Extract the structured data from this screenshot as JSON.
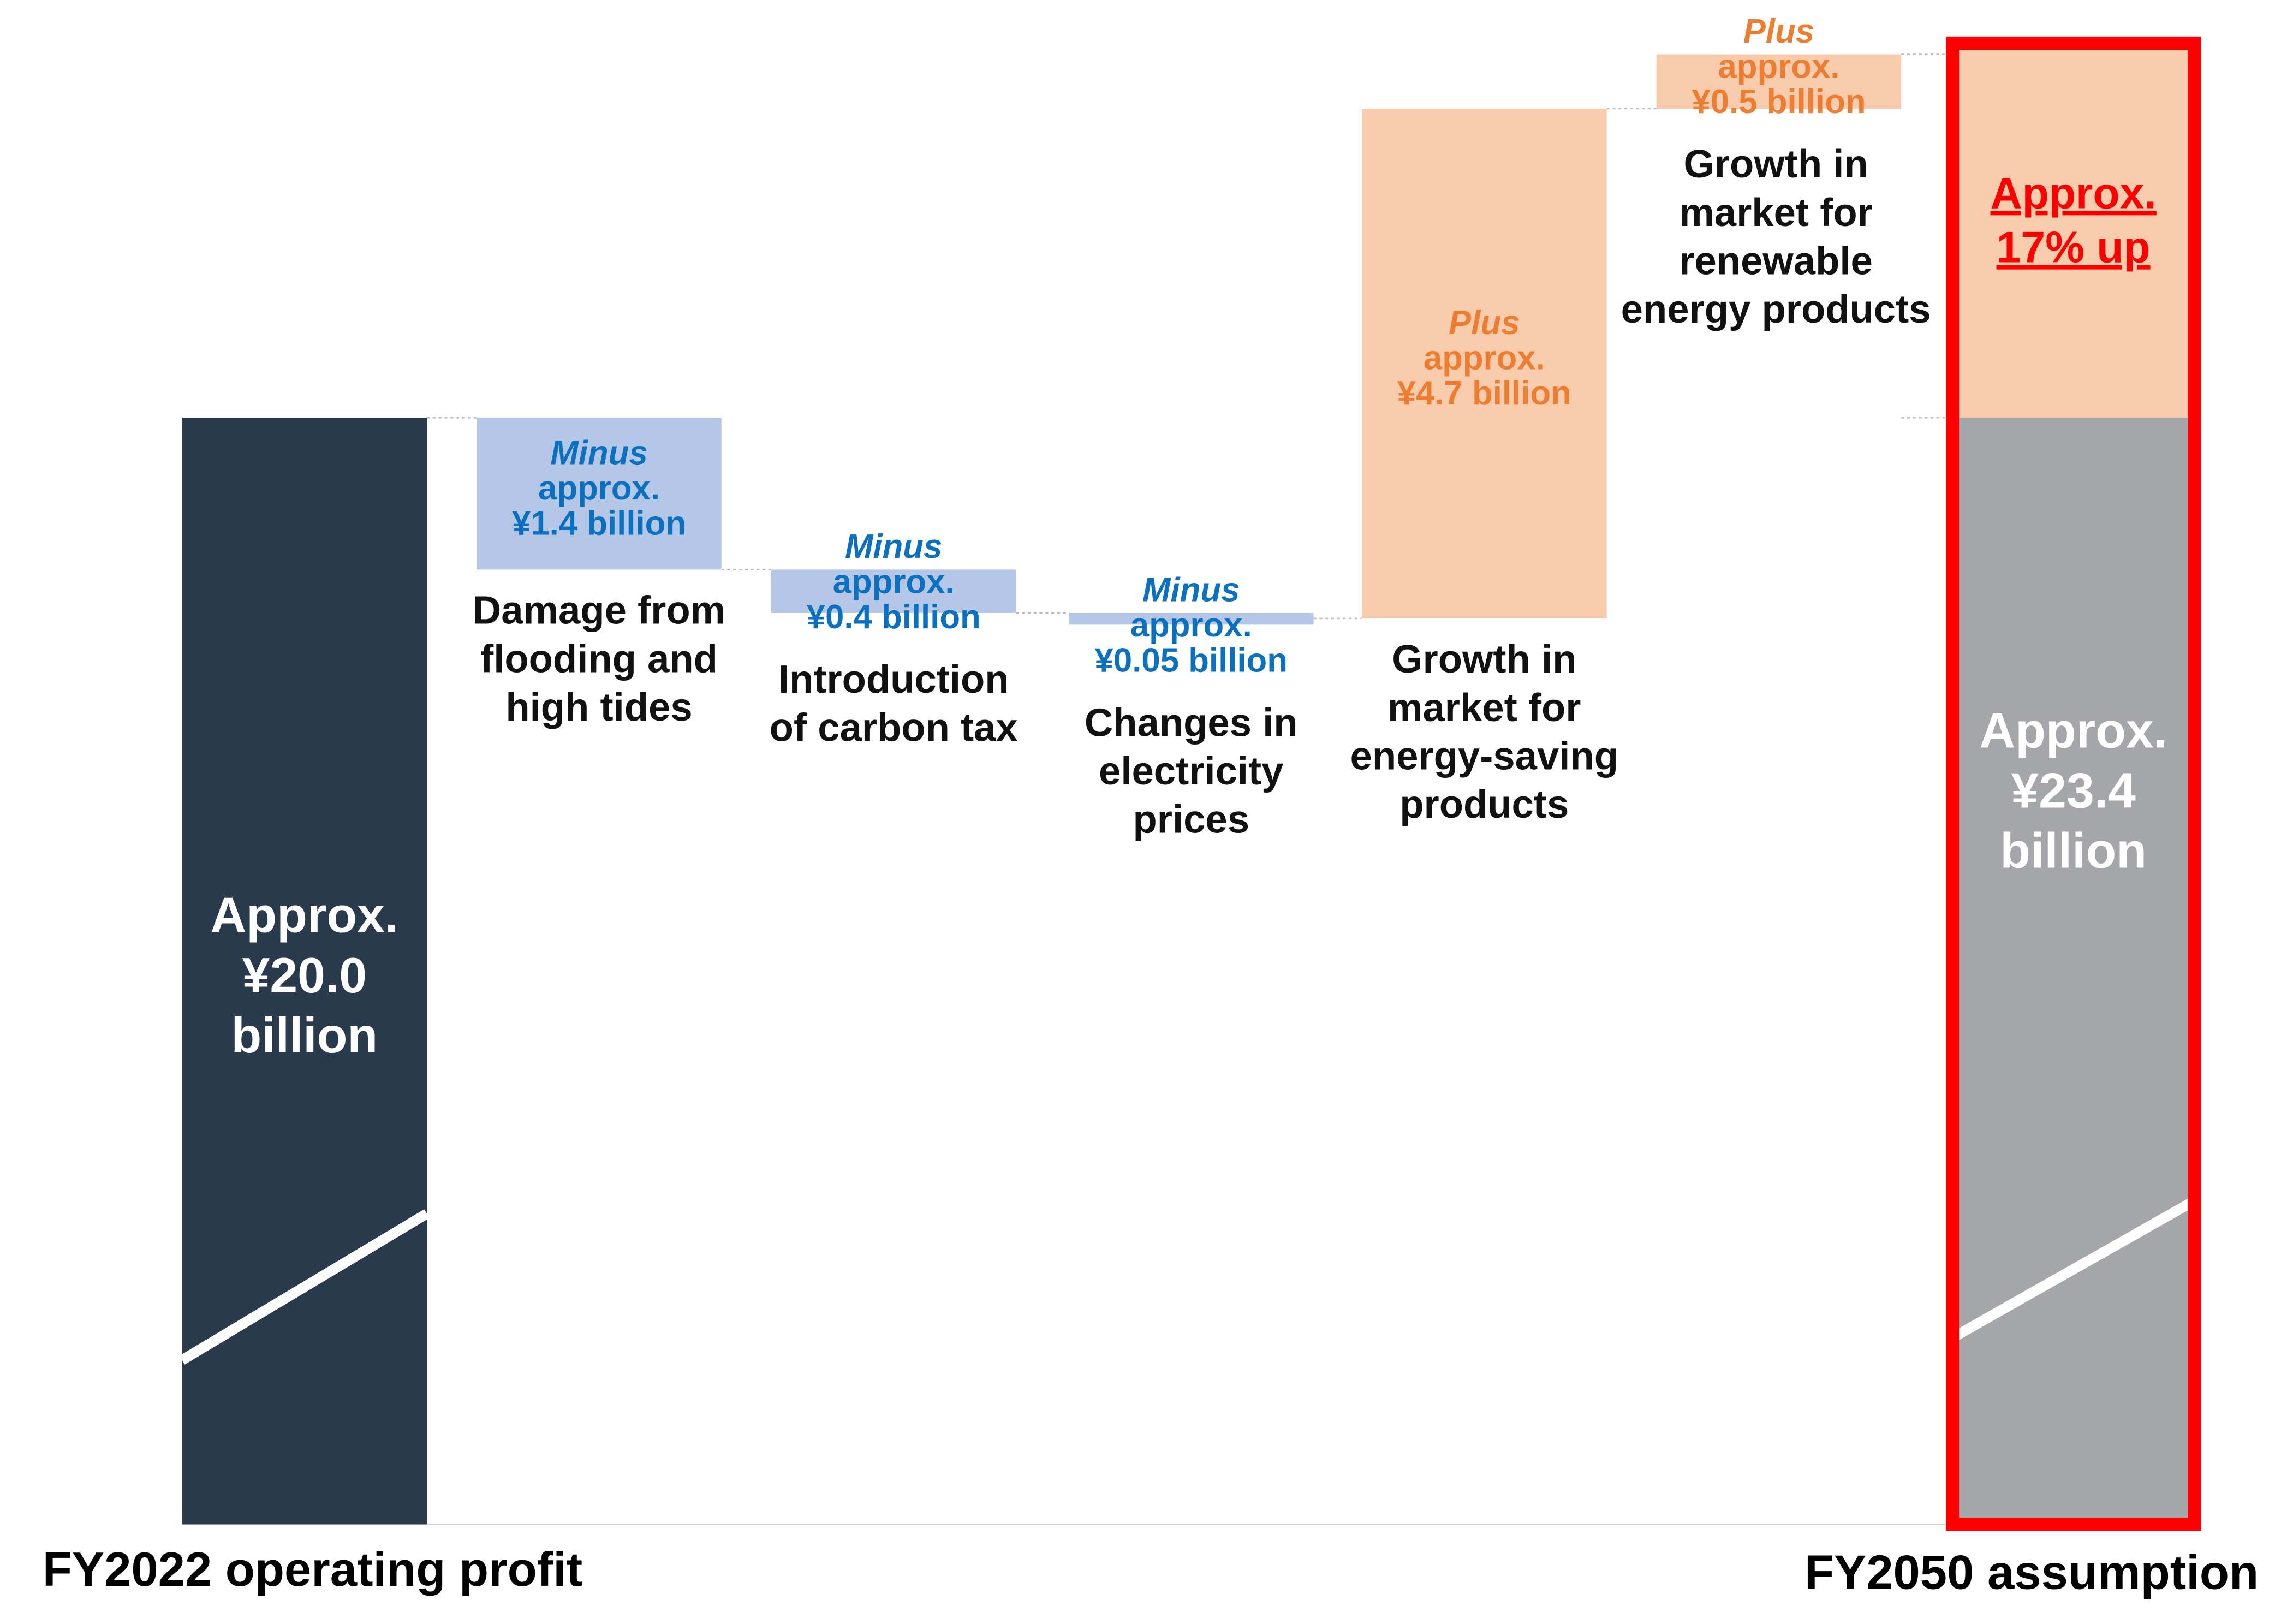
{
  "chart_data": {
    "type": "waterfall",
    "unit": "¥ billion",
    "start": {
      "label": "FY2022 operating profit",
      "value": 20.0,
      "value_text": [
        "Approx.",
        "¥20.0",
        "billion"
      ]
    },
    "steps": [
      {
        "category": [
          "Damage from",
          "flooding and",
          "high tides"
        ],
        "value": -1.4,
        "value_text": [
          "Minus",
          "approx.",
          "¥1.4 billion"
        ]
      },
      {
        "category": [
          "Introduction",
          "of carbon tax"
        ],
        "value": -0.4,
        "value_text": [
          "Minus",
          "approx.",
          "¥0.4 billion"
        ]
      },
      {
        "category": [
          "Changes in",
          "electricity",
          "prices"
        ],
        "value": -0.05,
        "value_text": [
          "Minus",
          "approx.",
          "¥0.05 billion"
        ]
      },
      {
        "category": [
          "Growth in",
          "market for",
          "energy-saving",
          "products"
        ],
        "value": 4.7,
        "value_text": [
          "Plus",
          "approx.",
          "¥4.7 billion"
        ]
      },
      {
        "category": [
          "Growth in",
          "market for",
          "renewable",
          "energy products"
        ],
        "value": 0.5,
        "value_text": [
          "Plus",
          "approx.",
          "¥0.5 billion"
        ]
      }
    ],
    "end": {
      "label": "FY2050 assumption",
      "value": 23.4,
      "value_text": [
        "Approx.",
        "¥23.4",
        "billion"
      ],
      "change_text": [
        "Approx.",
        "17% up"
      ]
    },
    "axis_break": true
  },
  "colors": {
    "start_bar": "#293a4c",
    "end_bar": "#a5a6aa",
    "decrease": "#b4c7e7",
    "decrease_text": "#0b70c0",
    "increase": "#f7cbac",
    "increase_text": "#ed7d31",
    "highlight": "#ff0000"
  }
}
